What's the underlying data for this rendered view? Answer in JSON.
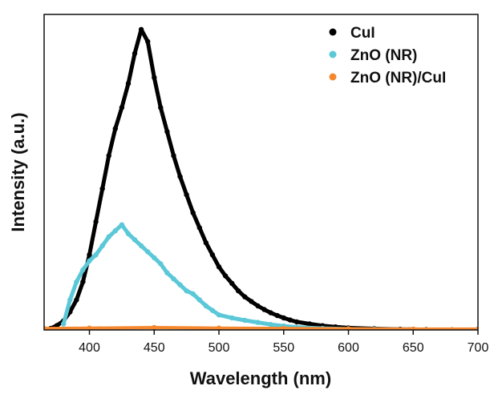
{
  "chart_data": {
    "type": "scatter",
    "xlabel": "Wavelength (nm)",
    "ylabel": "Intensity (a.u.)",
    "xlim": [
      365,
      700
    ],
    "ylim": [
      0,
      1.05
    ],
    "xticks": [
      400,
      450,
      500,
      550,
      600,
      650,
      700
    ],
    "grid": false,
    "legend_position": "top-right",
    "series": [
      {
        "name": "CuI",
        "color": "#000000",
        "x": [
          370,
          375,
          380,
          385,
          390,
          395,
          400,
          405,
          410,
          415,
          420,
          425,
          430,
          435,
          440,
          445,
          450,
          455,
          460,
          465,
          470,
          475,
          480,
          485,
          490,
          495,
          500,
          505,
          510,
          515,
          520,
          525,
          530,
          535,
          540,
          545,
          550,
          555,
          560,
          570,
          580,
          590,
          600,
          620,
          640,
          660,
          680,
          700
        ],
        "y": [
          0.005,
          0.015,
          0.03,
          0.06,
          0.1,
          0.16,
          0.25,
          0.36,
          0.47,
          0.58,
          0.67,
          0.74,
          0.82,
          0.92,
          1.0,
          0.96,
          0.84,
          0.74,
          0.66,
          0.58,
          0.51,
          0.45,
          0.39,
          0.34,
          0.29,
          0.25,
          0.21,
          0.18,
          0.155,
          0.13,
          0.11,
          0.095,
          0.08,
          0.068,
          0.057,
          0.048,
          0.04,
          0.033,
          0.027,
          0.02,
          0.014,
          0.01,
          0.007,
          0.004,
          0.002,
          0.001,
          0.0005,
          0.0002
        ]
      },
      {
        "name": "ZnO (NR)",
        "color": "#5bc8d8",
        "x": [
          380,
          385,
          390,
          395,
          400,
          405,
          410,
          415,
          420,
          425,
          430,
          435,
          440,
          445,
          450,
          455,
          460,
          465,
          470,
          475,
          480,
          485,
          490,
          495,
          500,
          510,
          520,
          530,
          540,
          550,
          560,
          580,
          600,
          620,
          650,
          700
        ],
        "y": [
          0.02,
          0.1,
          0.16,
          0.2,
          0.23,
          0.25,
          0.28,
          0.31,
          0.33,
          0.35,
          0.32,
          0.3,
          0.28,
          0.26,
          0.24,
          0.22,
          0.19,
          0.17,
          0.15,
          0.13,
          0.12,
          0.1,
          0.08,
          0.065,
          0.05,
          0.04,
          0.032,
          0.025,
          0.018,
          0.013,
          0.009,
          0.005,
          0.003,
          0.002,
          0.001,
          0.0005
        ]
      },
      {
        "name": "ZnO (NR)/CuI",
        "color": "#f5882e",
        "x": [
          365,
          400,
          450,
          500,
          550,
          600,
          650,
          700
        ],
        "y": [
          0.005,
          0.006,
          0.008,
          0.006,
          0.005,
          0.004,
          0.003,
          0.003
        ]
      }
    ]
  }
}
